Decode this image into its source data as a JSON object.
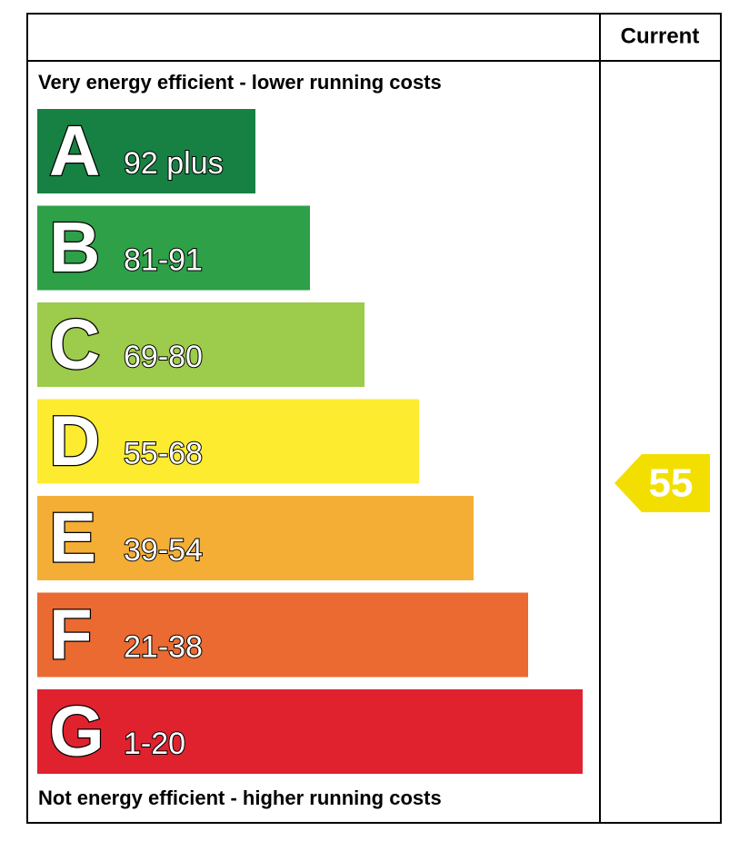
{
  "header": {
    "column": "Current"
  },
  "top_note": "Very energy efficient - lower running costs",
  "bottom_note": "Not energy efficient - higher running costs",
  "bands": [
    {
      "letter": "A",
      "range": "92 plus",
      "color": "#168143"
    },
    {
      "letter": "B",
      "range": "81-91",
      "color": "#2ea048"
    },
    {
      "letter": "C",
      "range": "69-80",
      "color": "#9dcb4c"
    },
    {
      "letter": "D",
      "range": "55-68",
      "color": "#fdeb30"
    },
    {
      "letter": "E",
      "range": "39-54",
      "color": "#f4ae36"
    },
    {
      "letter": "F",
      "range": "21-38",
      "color": "#ea6a31"
    },
    {
      "letter": "G",
      "range": "1-20",
      "color": "#e0222f"
    }
  ],
  "current": {
    "value": 55,
    "color": "#f2df00"
  }
}
